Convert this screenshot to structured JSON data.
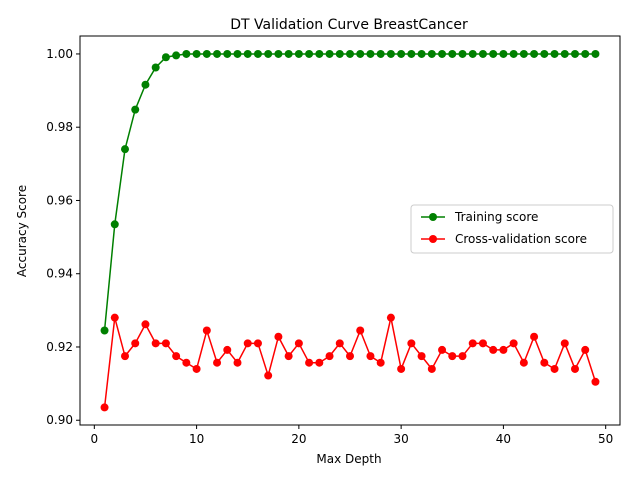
{
  "chart_data": {
    "type": "line",
    "title": "DT Validation Curve BreastCancer",
    "xlabel": "Max Depth",
    "ylabel": "Accuracy Score",
    "xlim": [
      -1.4,
      51.4
    ],
    "ylim": [
      0.8987,
      1.0049
    ],
    "xticks": [
      0,
      10,
      20,
      30,
      40,
      50
    ],
    "yticks": [
      0.9,
      0.92,
      0.94,
      0.96,
      0.98,
      1.0
    ],
    "ytick_labels": [
      "0.90",
      "0.92",
      "0.94",
      "0.96",
      "0.98",
      "1.00"
    ],
    "grid": false,
    "legend_position": "center-right",
    "x": [
      1,
      2,
      3,
      4,
      5,
      6,
      7,
      8,
      9,
      10,
      11,
      12,
      13,
      14,
      15,
      16,
      17,
      18,
      19,
      20,
      21,
      22,
      23,
      24,
      25,
      26,
      27,
      28,
      29,
      30,
      31,
      32,
      33,
      34,
      35,
      36,
      37,
      38,
      39,
      40,
      41,
      42,
      43,
      44,
      45,
      46,
      47,
      48,
      49
    ],
    "series": [
      {
        "name": "Training score",
        "color": "#008000",
        "values": [
          0.9245,
          0.9535,
          0.974,
          0.9848,
          0.9916,
          0.9963,
          0.9991,
          0.9996,
          1.0,
          1.0,
          1.0,
          1.0,
          1.0,
          1.0,
          1.0,
          1.0,
          1.0,
          1.0,
          1.0,
          1.0,
          1.0,
          1.0,
          1.0,
          1.0,
          1.0,
          1.0,
          1.0,
          1.0,
          1.0,
          1.0,
          1.0,
          1.0,
          1.0,
          1.0,
          1.0,
          1.0,
          1.0,
          1.0,
          1.0,
          1.0,
          1.0,
          1.0,
          1.0,
          1.0,
          1.0,
          1.0,
          1.0,
          1.0,
          1.0
        ]
      },
      {
        "name": "Cross-validation score",
        "color": "#ff0000",
        "values": [
          0.9035,
          0.928,
          0.9175,
          0.921,
          0.9262,
          0.921,
          0.921,
          0.9175,
          0.9157,
          0.914,
          0.9245,
          0.9157,
          0.9192,
          0.9157,
          0.921,
          0.921,
          0.9122,
          0.9228,
          0.9175,
          0.921,
          0.9157,
          0.9157,
          0.9175,
          0.921,
          0.9175,
          0.9245,
          0.9175,
          0.9157,
          0.928,
          0.914,
          0.921,
          0.9175,
          0.914,
          0.9192,
          0.9175,
          0.9175,
          0.921,
          0.921,
          0.9192,
          0.9192,
          0.921,
          0.9157,
          0.9228,
          0.9157,
          0.914,
          0.921,
          0.914,
          0.9192,
          0.9105
        ]
      }
    ]
  }
}
